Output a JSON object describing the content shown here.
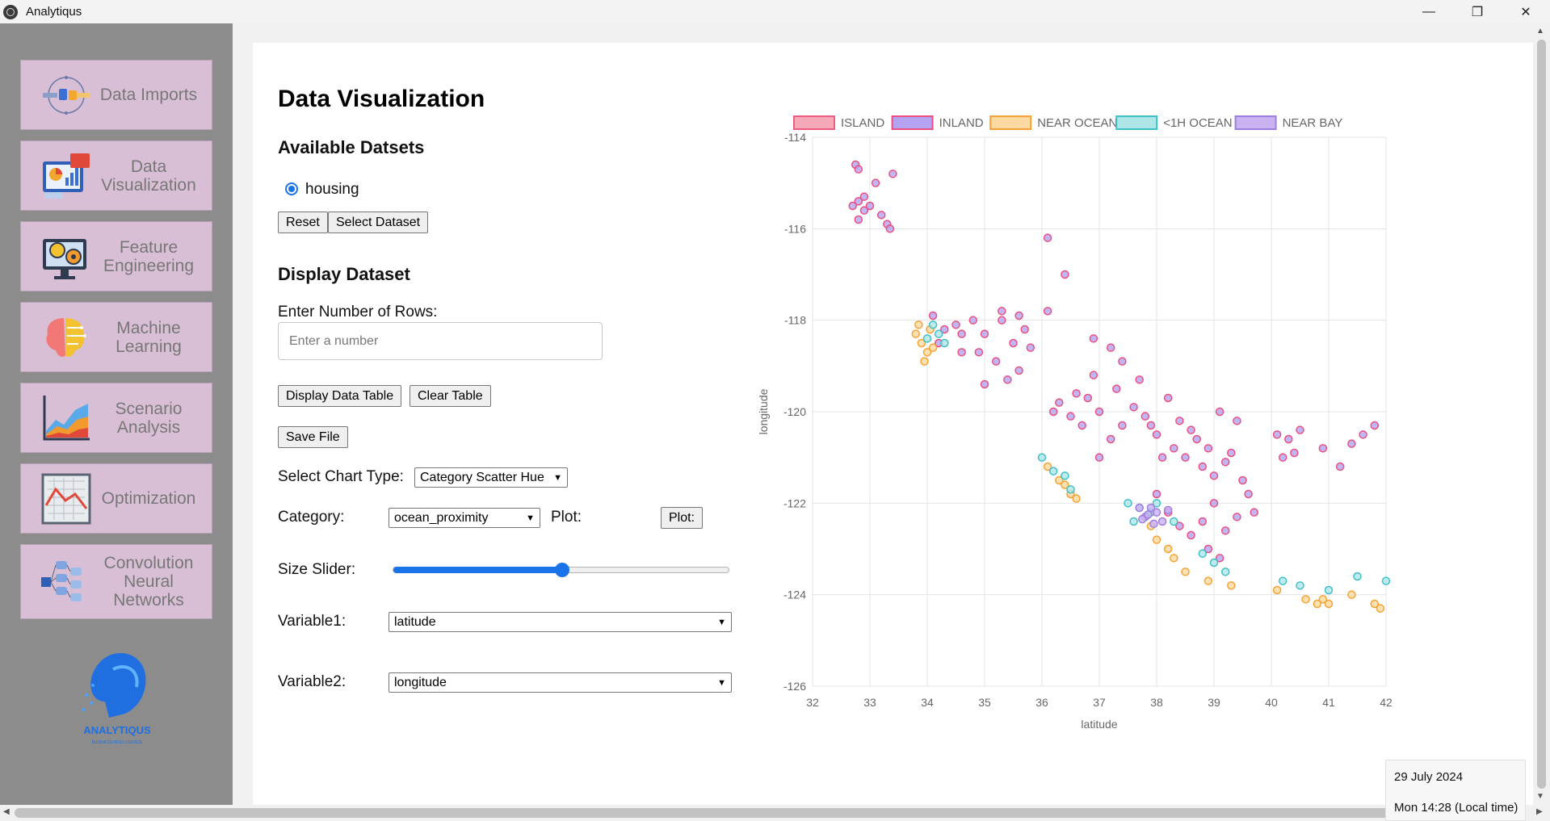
{
  "window": {
    "title": "Analytiqus",
    "controls": [
      "—",
      "❐",
      "✕"
    ]
  },
  "sidebar": {
    "items": [
      {
        "label": "Data Imports",
        "icon": "data-imports-icon"
      },
      {
        "label": "Data Visualization",
        "icon": "dashboard-chart-icon"
      },
      {
        "label": "Feature Engineering",
        "icon": "lightbulb-gear-icon"
      },
      {
        "label": "Machine Learning",
        "icon": "brain-icon"
      },
      {
        "label": "Scenario Analysis",
        "icon": "area-chart-icon"
      },
      {
        "label": "Optimization",
        "icon": "line-chart-icon"
      },
      {
        "label": "Convolution Neural Networks",
        "icon": "neural-network-icon"
      }
    ],
    "logo": {
      "text": "ANALYTIQUS",
      "subtitle": "BUSINESS INTELLIGENCE"
    }
  },
  "main": {
    "title": "Data Visualization",
    "datasets_heading": "Available Datsets",
    "dataset_option": "housing",
    "reset_label": "Reset",
    "select_dataset_label": "Select Dataset",
    "display_heading": "Display Dataset",
    "rows_label": "Enter Number of Rows:",
    "rows_placeholder": "Enter a number",
    "display_table_label": "Display Data Table",
    "clear_table_label": "Clear Table",
    "save_file_label": "Save File",
    "chart_type_label": "Select Chart Type:",
    "chart_type_value": "Category Scatter Hue",
    "category_label": "Category:",
    "category_value": "ocean_proximity",
    "plot_label": "Plot:",
    "plot_button_label": "Plot:",
    "size_slider_label": "Size Slider:",
    "size_slider_value": 0.5,
    "variable1_label": "Variable1:",
    "variable1_value": "latitude",
    "variable2_label": "Variable2:",
    "variable2_value": "longitude"
  },
  "datetime": {
    "date": "29 July 2024",
    "time": "Mon 14:28 (Local time)"
  },
  "chart_data": {
    "type": "scatter",
    "xlabel": "latitude",
    "ylabel": "longitude",
    "xlim": [
      32,
      42
    ],
    "ylim": [
      -126,
      -114
    ],
    "xticks": [
      32,
      33,
      34,
      35,
      36,
      37,
      38,
      39,
      40,
      41,
      42
    ],
    "yticks": [
      -114,
      -116,
      -118,
      -120,
      -122,
      -124,
      -126
    ],
    "grid": true,
    "legend_position": "top",
    "series": [
      {
        "name": "ISLAND",
        "fill": "#f4a8b8",
        "stroke": "#ec5f82",
        "points": []
      },
      {
        "name": "INLAND",
        "fill": "#b3a3f0",
        "stroke": "#ec4f7e",
        "points": [
          [
            32.7,
            -115.5
          ],
          [
            32.8,
            -115.4
          ],
          [
            32.9,
            -115.6
          ],
          [
            33.0,
            -115.5
          ],
          [
            32.8,
            -115.8
          ],
          [
            32.75,
            -114.6
          ],
          [
            32.8,
            -114.7
          ],
          [
            33.1,
            -115.0
          ],
          [
            33.4,
            -114.8
          ],
          [
            33.3,
            -115.9
          ],
          [
            33.35,
            -116.0
          ],
          [
            33.2,
            -115.7
          ],
          [
            32.9,
            -115.3
          ],
          [
            34.1,
            -117.9
          ],
          [
            34.3,
            -118.2
          ],
          [
            34.5,
            -118.1
          ],
          [
            34.6,
            -118.3
          ],
          [
            34.8,
            -118.0
          ],
          [
            35.0,
            -118.3
          ],
          [
            35.3,
            -118.0
          ],
          [
            35.6,
            -117.9
          ],
          [
            35.7,
            -118.2
          ],
          [
            35.5,
            -118.5
          ],
          [
            34.9,
            -118.7
          ],
          [
            35.2,
            -118.9
          ],
          [
            35.4,
            -119.3
          ],
          [
            35.0,
            -119.4
          ],
          [
            35.6,
            -119.1
          ],
          [
            35.8,
            -118.6
          ],
          [
            34.6,
            -118.7
          ],
          [
            34.2,
            -118.5
          ],
          [
            36.1,
            -116.2
          ],
          [
            36.4,
            -117.0
          ],
          [
            36.1,
            -117.8
          ],
          [
            35.3,
            -117.8
          ],
          [
            36.3,
            -119.8
          ],
          [
            36.6,
            -119.6
          ],
          [
            36.8,
            -119.7
          ],
          [
            37.0,
            -120.0
          ],
          [
            36.7,
            -120.3
          ],
          [
            37.2,
            -120.6
          ],
          [
            37.0,
            -121.0
          ],
          [
            36.5,
            -120.1
          ],
          [
            36.2,
            -120.0
          ],
          [
            36.9,
            -119.2
          ],
          [
            37.3,
            -119.5
          ],
          [
            37.6,
            -119.9
          ],
          [
            37.8,
            -120.1
          ],
          [
            37.4,
            -120.3
          ],
          [
            36.9,
            -118.4
          ],
          [
            37.2,
            -118.6
          ],
          [
            37.4,
            -118.9
          ],
          [
            37.7,
            -119.3
          ],
          [
            38.0,
            -120.5
          ],
          [
            38.3,
            -120.8
          ],
          [
            38.5,
            -121.0
          ],
          [
            38.6,
            -120.4
          ],
          [
            38.9,
            -120.8
          ],
          [
            39.2,
            -121.1
          ],
          [
            39.4,
            -120.2
          ],
          [
            38.1,
            -121.0
          ],
          [
            38.8,
            -121.2
          ],
          [
            39.1,
            -120.0
          ],
          [
            39.3,
            -120.9
          ],
          [
            38.7,
            -120.6
          ],
          [
            39.0,
            -121.4
          ],
          [
            38.4,
            -120.2
          ],
          [
            37.9,
            -120.3
          ],
          [
            38.2,
            -119.7
          ],
          [
            38.0,
            -121.8
          ],
          [
            38.2,
            -122.2
          ],
          [
            38.4,
            -122.5
          ],
          [
            38.6,
            -122.7
          ],
          [
            38.8,
            -122.4
          ],
          [
            39.0,
            -122.0
          ],
          [
            39.2,
            -122.6
          ],
          [
            39.4,
            -122.3
          ],
          [
            39.6,
            -121.8
          ],
          [
            39.7,
            -122.2
          ],
          [
            39.5,
            -121.5
          ],
          [
            38.9,
            -123.0
          ],
          [
            39.1,
            -123.2
          ],
          [
            40.1,
            -120.5
          ],
          [
            40.3,
            -120.6
          ],
          [
            40.5,
            -120.4
          ],
          [
            40.4,
            -120.9
          ],
          [
            40.9,
            -120.8
          ],
          [
            41.2,
            -121.2
          ],
          [
            41.6,
            -120.5
          ],
          [
            41.8,
            -120.3
          ],
          [
            41.4,
            -120.7
          ],
          [
            40.2,
            -121.0
          ]
        ]
      },
      {
        "name": "NEAR OCEAN",
        "fill": "#fbd9a0",
        "stroke": "#f6a233",
        "points": [
          [
            33.8,
            -118.3
          ],
          [
            33.9,
            -118.5
          ],
          [
            34.0,
            -118.7
          ],
          [
            33.95,
            -118.9
          ],
          [
            34.05,
            -118.2
          ],
          [
            34.1,
            -118.6
          ],
          [
            33.85,
            -118.1
          ],
          [
            36.1,
            -121.2
          ],
          [
            36.3,
            -121.5
          ],
          [
            36.5,
            -121.8
          ],
          [
            36.6,
            -121.9
          ],
          [
            36.4,
            -121.6
          ],
          [
            37.9,
            -122.5
          ],
          [
            38.0,
            -122.8
          ],
          [
            38.2,
            -123.0
          ],
          [
            38.3,
            -123.2
          ],
          [
            38.5,
            -123.5
          ],
          [
            38.9,
            -123.7
          ],
          [
            39.3,
            -123.8
          ],
          [
            40.1,
            -123.9
          ],
          [
            40.6,
            -124.1
          ],
          [
            40.8,
            -124.2
          ],
          [
            41.0,
            -124.2
          ],
          [
            41.4,
            -124.0
          ],
          [
            41.8,
            -124.2
          ],
          [
            41.9,
            -124.3
          ],
          [
            40.9,
            -124.1
          ]
        ]
      },
      {
        "name": "<1H OCEAN",
        "fill": "#aee6e8",
        "stroke": "#3fc0c6",
        "points": [
          [
            34.0,
            -118.4
          ],
          [
            34.2,
            -118.3
          ],
          [
            34.3,
            -118.5
          ],
          [
            34.1,
            -118.1
          ],
          [
            36.0,
            -121.0
          ],
          [
            36.2,
            -121.3
          ],
          [
            36.4,
            -121.4
          ],
          [
            36.5,
            -121.7
          ],
          [
            37.5,
            -122.0
          ],
          [
            37.7,
            -122.1
          ],
          [
            37.8,
            -122.3
          ],
          [
            37.6,
            -122.4
          ],
          [
            37.9,
            -122.2
          ],
          [
            38.0,
            -122.0
          ],
          [
            38.3,
            -122.4
          ],
          [
            38.8,
            -123.1
          ],
          [
            39.0,
            -123.3
          ],
          [
            39.2,
            -123.5
          ],
          [
            40.5,
            -123.8
          ],
          [
            41.0,
            -123.9
          ],
          [
            41.5,
            -123.6
          ],
          [
            42.0,
            -123.7
          ],
          [
            40.2,
            -123.7
          ]
        ]
      },
      {
        "name": "NEAR BAY",
        "fill": "#c9b3f1",
        "stroke": "#a07de0",
        "points": [
          [
            37.7,
            -122.1
          ],
          [
            37.8,
            -122.3
          ],
          [
            37.9,
            -122.1
          ],
          [
            38.0,
            -122.2
          ],
          [
            38.1,
            -122.4
          ],
          [
            37.85,
            -122.25
          ],
          [
            38.2,
            -122.15
          ],
          [
            37.75,
            -122.35
          ],
          [
            37.95,
            -122.45
          ]
        ]
      }
    ]
  }
}
